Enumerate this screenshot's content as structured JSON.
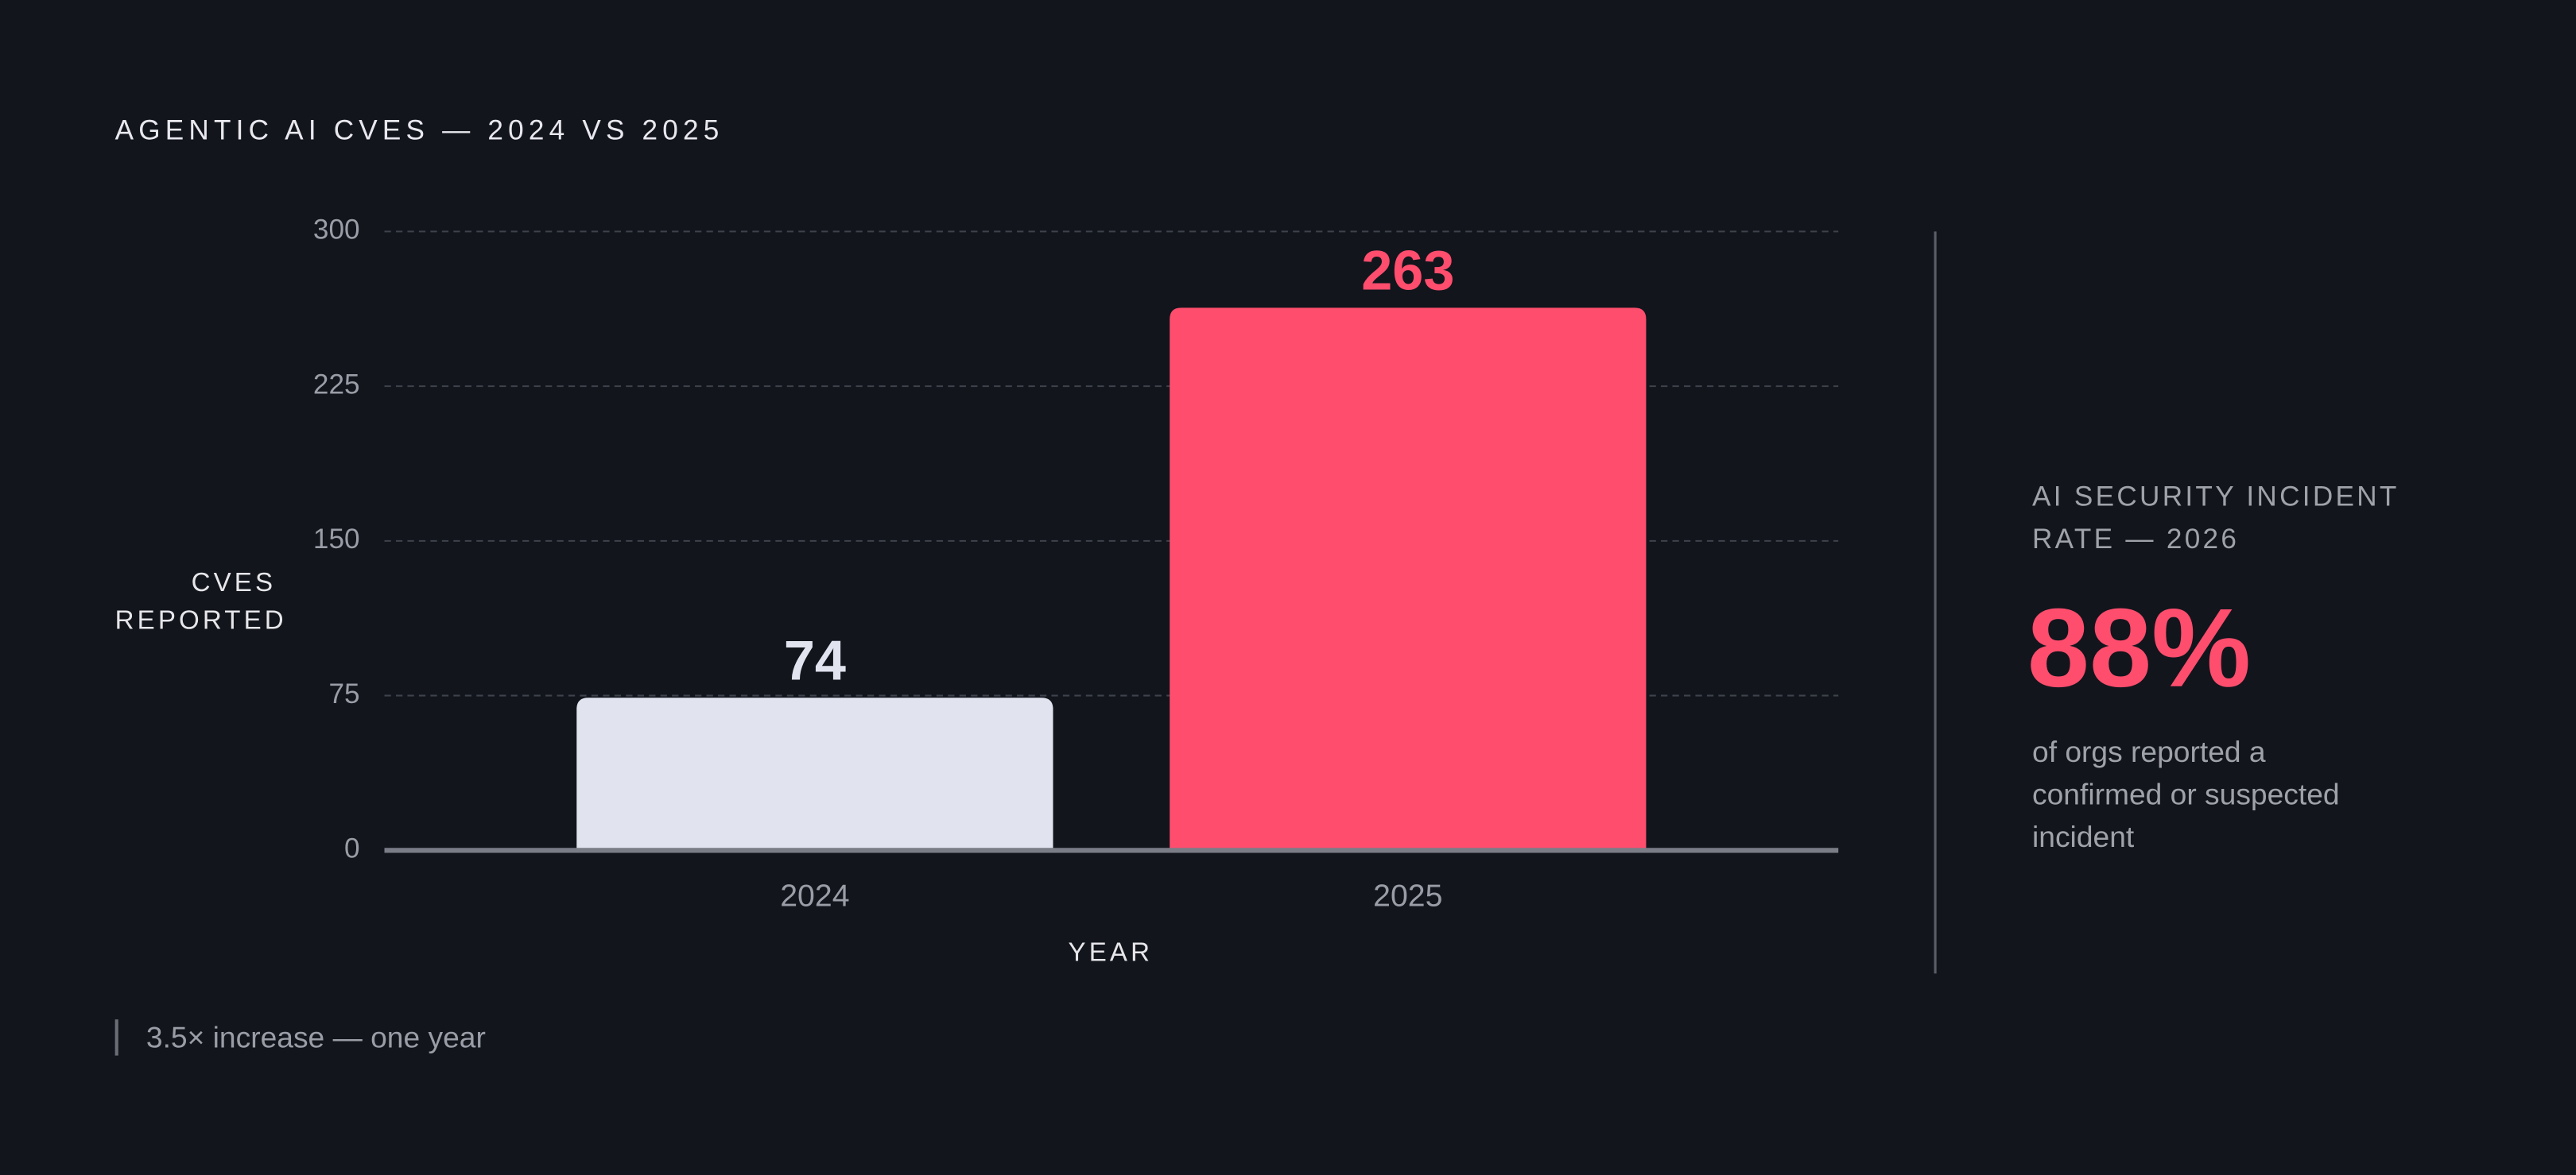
{
  "chart_data": {
    "type": "bar",
    "title": "AGENTIC AI CVES — 2024 VS 2025",
    "y_label": "CVES REPORTED",
    "x_label": "YEAR",
    "categories": [
      "2024",
      "2025"
    ],
    "values": [
      74,
      263
    ],
    "colors": [
      "#e1e3ef",
      "#ff4d6d"
    ],
    "ylim": [
      0,
      300
    ],
    "yticks": [
      0,
      75,
      150,
      225,
      300
    ],
    "grid": true,
    "annotation": "3.5× increase — one year"
  },
  "stat": {
    "label": "AI SECURITY INCIDENT RATE — 2026",
    "value": "88%",
    "description": "of orgs reported a confirmed or suspected incident"
  }
}
